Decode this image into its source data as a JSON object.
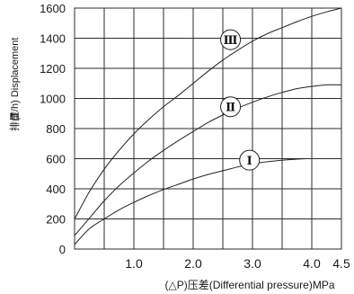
{
  "chart_data": {
    "type": "line",
    "xlabel": "(△P)压差(Differential pressure)MPa",
    "ylabel_cn": "排量",
    "ylabel_en": "(T/h) Displacement",
    "xlim": [
      0,
      4.5
    ],
    "ylim": [
      0,
      1600
    ],
    "x_ticks": [
      1.0,
      2.0,
      3.0,
      4.0,
      4.5
    ],
    "x_tick_labels": [
      "1.0",
      "2.0",
      "3.0",
      "4.0",
      "4.5"
    ],
    "y_ticks": [
      0,
      200,
      400,
      600,
      800,
      1000,
      1200,
      1400,
      1600
    ],
    "x_gridlines": [
      0.5,
      1.0,
      1.5,
      2.0,
      2.5,
      3.0,
      3.5,
      4.0
    ],
    "grid": true,
    "series": [
      {
        "name": "Ⅲ",
        "x": [
          0,
          0.25,
          0.5,
          0.75,
          1.0,
          1.25,
          1.5,
          1.75,
          2.0,
          2.25,
          2.5,
          2.75,
          3.0,
          3.25,
          3.5,
          3.75,
          4.0,
          4.25,
          4.5
        ],
        "y": [
          200,
          380,
          530,
          655,
          765,
          860,
          945,
          1020,
          1100,
          1180,
          1255,
          1320,
          1380,
          1430,
          1470,
          1510,
          1545,
          1575,
          1600
        ],
        "marker_at": [
          2.63,
          1390
        ]
      },
      {
        "name": "Ⅱ",
        "x": [
          0,
          0.25,
          0.5,
          0.75,
          1.0,
          1.25,
          1.5,
          1.75,
          2.0,
          2.25,
          2.5,
          2.75,
          3.0,
          3.25,
          3.5,
          3.75,
          4.0,
          4.25,
          4.5
        ],
        "y": [
          90,
          205,
          320,
          420,
          505,
          585,
          655,
          720,
          780,
          840,
          890,
          935,
          975,
          1010,
          1040,
          1065,
          1080,
          1090,
          1090
        ],
        "marker_at": [
          2.63,
          945
        ]
      },
      {
        "name": "Ⅰ",
        "x": [
          0,
          0.25,
          0.5,
          0.75,
          1.0,
          1.25,
          1.5,
          1.75,
          2.0,
          2.25,
          2.5,
          2.75,
          3.0,
          3.25,
          3.5,
          3.75,
          3.9
        ],
        "y": [
          30,
          135,
          200,
          260,
          310,
          355,
          395,
          430,
          465,
          495,
          520,
          545,
          565,
          580,
          590,
          597,
          600
        ],
        "marker_at": [
          2.95,
          590
        ]
      }
    ]
  }
}
